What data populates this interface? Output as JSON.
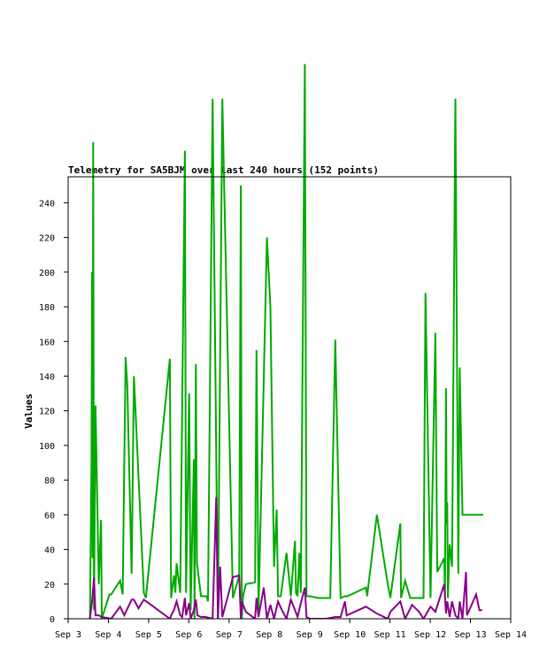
{
  "chart_data": {
    "type": "line",
    "title": "Telemetry for SA5BJM over last 240 hours (152 points)",
    "xlabel": "",
    "ylabel": "Values",
    "xlim": [
      "Sep 3",
      "Sep 14"
    ],
    "ylim": [
      0,
      255
    ],
    "x_ticks": [
      "Sep 3",
      "Sep 4",
      "Sep 5",
      "Sep 6",
      "Sep 7",
      "Sep 8",
      "Sep 9",
      "Sep 10",
      "Sep 11",
      "Sep 12",
      "Sep 13",
      "Sep 14"
    ],
    "y_ticks": [
      0,
      20,
      40,
      60,
      80,
      100,
      120,
      140,
      160,
      180,
      200,
      220,
      240
    ],
    "grid": false,
    "legend": "none",
    "series": [
      {
        "color": "#00aa00",
        "x": [
          "Sep 3 13:00",
          "Sep 3 13:55",
          "Sep 3 14:15",
          "Sep 3 14:35",
          "Sep 3 14:55",
          "Sep 3 15:25",
          "Sep 3 16:20",
          "Sep 3 18:15",
          "Sep 3 19:40",
          "Sep 3 20:05",
          "Sep 4 00:40",
          "Sep 4 01:40",
          "Sep 4 07:00",
          "Sep 4 08:30",
          "Sep 4 10:15",
          "Sep 4 11:15",
          "Sep 4 13:50",
          "Sep 4 15:15",
          "Sep 4 21:10",
          "Sep 4 22:20",
          "Sep 5 12:40",
          "Sep 5 13:25",
          "Sep 5 15:10",
          "Sep 5 15:55",
          "Sep 5 16:40",
          "Sep 5 18:50",
          "Sep 5 21:40",
          "Sep 5 22:20",
          "Sep 6 00:10",
          "Sep 6 01:05",
          "Sep 6 03:00",
          "Sep 6 03:25",
          "Sep 6 04:10",
          "Sep 6 04:50",
          "Sep 6 07:15",
          "Sep 6 08:15",
          "Sep 6 09:00",
          "Sep 6 10:00",
          "Sep 6 10:40",
          "Sep 6 11:25",
          "Sep 6 14:10",
          "Sep 6 17:20",
          "Sep 6 20:00",
          "Sep 7 02:15",
          "Sep 7 06:05",
          "Sep 7 07:00",
          "Sep 7 07:35",
          "Sep 7 08:20",
          "Sep 7 10:00",
          "Sep 7 15:30",
          "Sep 7 16:20",
          "Sep 7 17:35",
          "Sep 7 22:35",
          "Sep 8 00:40",
          "Sep 8 02:50",
          "Sep 8 04:25",
          "Sep 8 05:10",
          "Sep 8 06:50",
          "Sep 8 10:15",
          "Sep 8 12:50",
          "Sep 8 15:20",
          "Sep 8 15:55",
          "Sep 8 16:50",
          "Sep 8 17:55",
          "Sep 8 18:50",
          "Sep 8 21:10",
          "Sep 8 22:10",
          "Sep 9 00:00",
          "Sep 9 05:10",
          "Sep 9 07:40",
          "Sep 9 09:50",
          "Sep 9 12:20",
          "Sep 9 15:20",
          "Sep 9 18:30",
          "Sep 9 21:05",
          "Sep 9 21:40",
          "Sep 9 22:10",
          "Sep 9 22:35",
          "Sep 10 09:40",
          "Sep 10 10:20",
          "Sep 10 16:10",
          "Sep 10 22:40",
          "Sep 11 00:10",
          "Sep 11 06:10",
          "Sep 11 06:35",
          "Sep 11 09:00",
          "Sep 11 12:00",
          "Sep 11 13:10",
          "Sep 11 17:20",
          "Sep 11 20:00",
          "Sep 11 21:10",
          "Sep 12 00:10",
          "Sep 12 03:05",
          "Sep 12 04:10",
          "Sep 12 08:20",
          "Sep 12 08:45",
          "Sep 12 09:25",
          "Sep 12 09:45",
          "Sep 12 10:10",
          "Sep 12 10:30",
          "Sep 12 11:35",
          "Sep 12 13:00",
          "Sep 12 15:00",
          "Sep 12 16:45",
          "Sep 12 17:35",
          "Sep 12 19:15",
          "Sep 12 21:20",
          "Sep 12 21:55",
          "Sep 13 03:20",
          "Sep 13 04:10",
          "Sep 13 05:20",
          "Sep 13 05:40",
          "Sep 13 06:10",
          "Sep 13 06:35",
          "Sep 13 07:00",
          "Sep 13 07:35"
        ],
        "y": [
          0,
          90,
          200,
          35,
          275,
          5,
          123,
          20,
          57,
          0,
          14,
          14,
          22,
          14,
          151,
          135,
          26,
          140,
          15,
          12,
          150,
          12,
          25,
          15,
          32,
          15,
          270,
          15,
          130,
          5,
          92,
          0,
          147,
          32,
          13,
          13,
          13,
          13,
          13,
          10,
          300,
          0,
          300,
          12,
          25,
          250,
          0,
          13,
          20,
          21,
          155,
          5,
          220,
          180,
          30,
          63,
          13,
          13,
          38,
          13,
          45,
          15,
          13,
          38,
          15,
          320,
          13,
          13,
          12,
          12,
          12,
          12,
          161,
          12,
          13,
          13,
          13,
          13,
          18,
          13,
          60,
          20,
          12,
          55,
          12,
          22,
          12,
          12,
          12,
          12,
          188,
          12,
          165,
          27,
          35,
          13,
          133,
          55,
          67,
          12,
          43,
          30,
          300,
          26,
          145,
          60,
          60,
          60,
          60,
          60,
          60,
          60,
          60,
          60,
          60,
          60
        ],
        "x_clean": [],
        "y_clean": []
      },
      {
        "color": "#880088",
        "x": [
          "Sep 3 13:00",
          "Sep 3 14:15",
          "Sep 3 15:25",
          "Sep 3 16:20",
          "Sep 3 18:15",
          "Sep 3 20:05",
          "Sep 4 01:40",
          "Sep 4 07:00",
          "Sep 4 09:30",
          "Sep 4 13:50",
          "Sep 4 15:15",
          "Sep 4 18:00",
          "Sep 4 21:10",
          "Sep 5 00:10",
          "Sep 5 12:40",
          "Sep 5 14:00",
          "Sep 5 15:10",
          "Sep 5 16:40",
          "Sep 5 18:50",
          "Sep 5 20:00",
          "Sep 5 21:40",
          "Sep 5 22:20",
          "Sep 6 00:10",
          "Sep 6 01:05",
          "Sep 6 03:00",
          "Sep 6 04:10",
          "Sep 6 05:10",
          "Sep 6 07:15",
          "Sep 6 10:00",
          "Sep 6 14:10",
          "Sep 6 16:20",
          "Sep 6 17:20",
          "Sep 6 18:40",
          "Sep 6 20:00",
          "Sep 7 02:15",
          "Sep 7 06:05",
          "Sep 7 07:00",
          "Sep 7 07:35",
          "Sep 7 10:00",
          "Sep 7 15:30",
          "Sep 7 16:20",
          "Sep 7 17:35",
          "Sep 7 20:40",
          "Sep 7 22:35",
          "Sep 8 00:40",
          "Sep 8 02:50",
          "Sep 8 05:10",
          "Sep 8 07:30",
          "Sep 8 10:15",
          "Sep 8 12:50",
          "Sep 8 15:20",
          "Sep 8 16:50",
          "Sep 8 18:50",
          "Sep 8 21:10",
          "Sep 8 22:10",
          "Sep 9 00:00",
          "Sep 9 05:10",
          "Sep 9 09:50",
          "Sep 9 15:20",
          "Sep 9 18:30",
          "Sep 9 21:05",
          "Sep 9 22:10",
          "Sep 10 09:40",
          "Sep 10 16:10",
          "Sep 10 22:40",
          "Sep 11 00:10",
          "Sep 11 06:10",
          "Sep 11 09:00",
          "Sep 11 13:10",
          "Sep 11 17:20",
          "Sep 11 20:00",
          "Sep 12 00:10",
          "Sep 12 03:05",
          "Sep 12 08:20",
          "Sep 12 09:25",
          "Sep 12 10:10",
          "Sep 12 11:35",
          "Sep 12 13:00",
          "Sep 12 15:00",
          "Sep 12 16:45",
          "Sep 12 17:35",
          "Sep 12 19:15",
          "Sep 12 21:20",
          "Sep 12 21:55",
          "Sep 13 03:20",
          "Sep 13 05:20",
          "Sep 13 06:10",
          "Sep 13 07:00"
        ],
        "y": [
          0,
          10,
          24,
          2,
          2,
          1,
          0,
          7,
          2,
          11,
          11,
          6,
          11,
          9,
          0,
          3,
          5,
          10,
          2,
          1,
          12,
          2,
          9,
          0,
          5,
          11,
          2,
          1,
          1,
          0,
          70,
          0,
          30,
          1,
          24,
          25,
          0,
          10,
          4,
          0,
          12,
          1,
          18,
          0,
          8,
          0,
          10,
          5,
          0,
          11,
          5,
          1,
          9,
          18,
          1,
          0,
          0,
          0,
          1,
          1,
          10,
          2,
          7,
          3,
          0,
          4,
          10,
          0,
          8,
          4,
          0,
          7,
          4,
          20,
          3,
          10,
          1,
          10,
          2,
          0,
          10,
          0,
          27,
          2,
          14,
          5,
          5,
          5
        ],
        "x_clean": [],
        "y_clean": []
      }
    ]
  }
}
